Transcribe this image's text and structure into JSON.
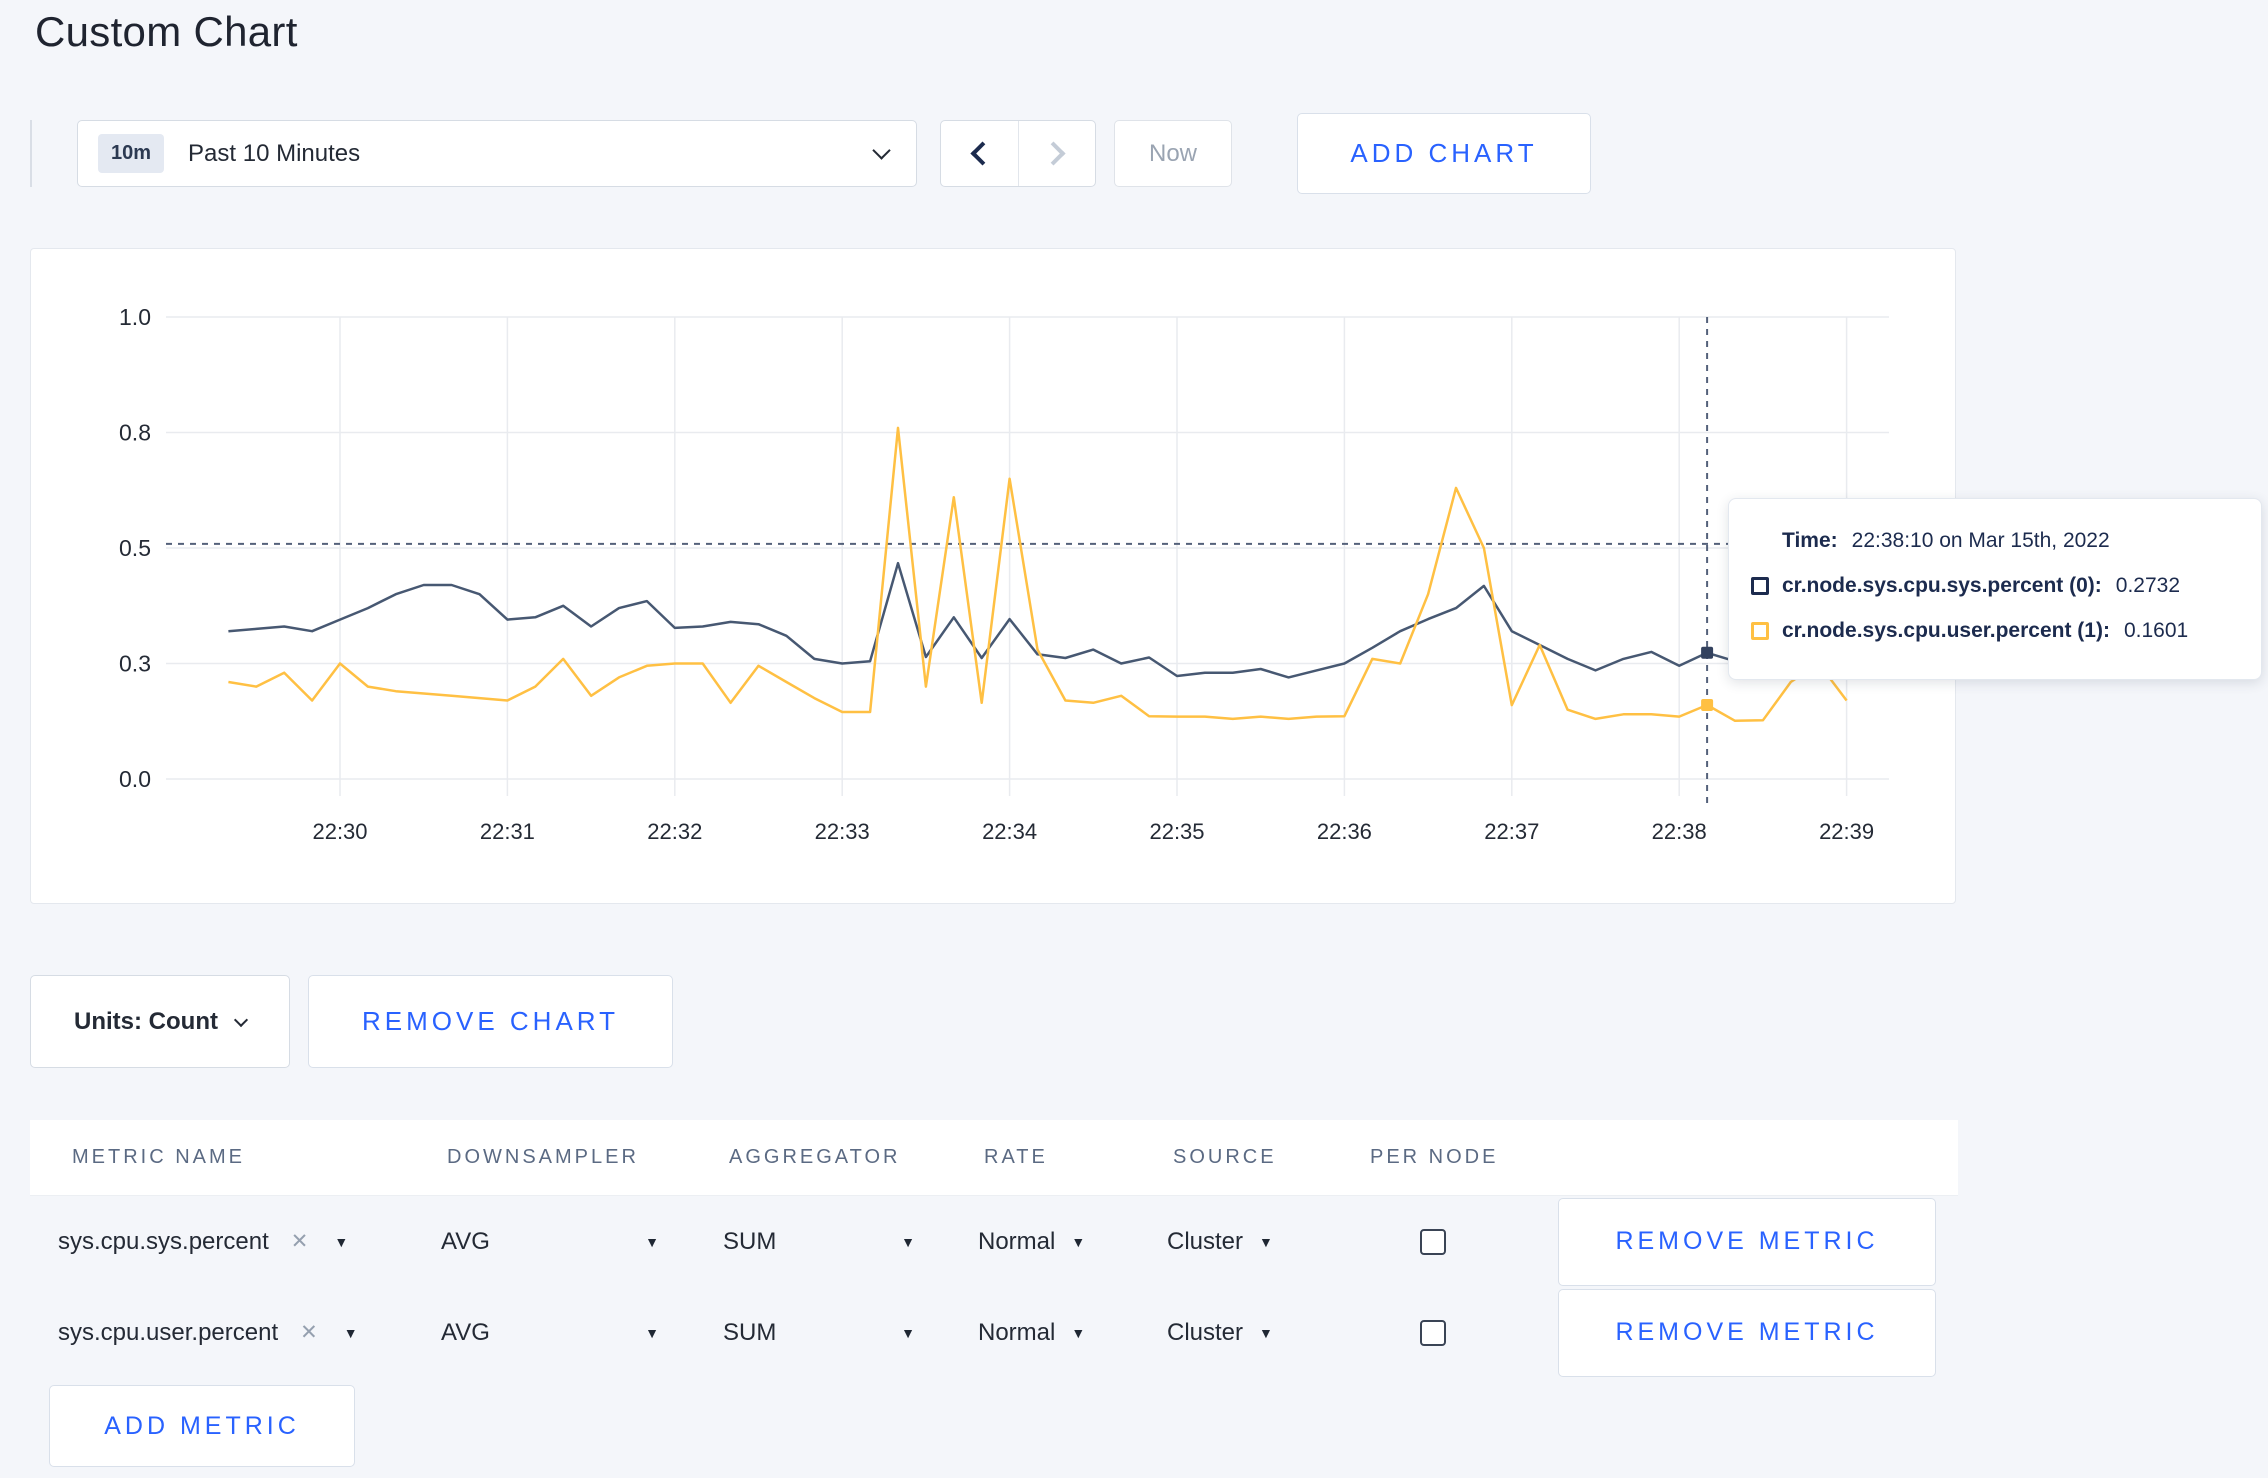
{
  "page": {
    "title": "Custom Chart"
  },
  "toolbar": {
    "range_badge": "10m",
    "range_label": "Past 10 Minutes",
    "now_label": "Now",
    "add_chart_label": "ADD CHART"
  },
  "icons": {
    "close": "✕",
    "dropdown": "▼"
  },
  "colors": {
    "accent_blue": "#2962ff",
    "series_sys": "#475872",
    "series_user": "#ffc043",
    "crosshair": "#54617a",
    "gridline": "#e9ebef",
    "axis_text": "#242a35"
  },
  "chart_data": {
    "type": "line",
    "title": "",
    "xlabel": "",
    "ylabel": "",
    "ylim": [
      0,
      1
    ],
    "grid": true,
    "legend_position": "none",
    "y_ticks": {
      "labels": [
        "1.0",
        "0.8",
        "0.5",
        "0.3",
        "0.0"
      ],
      "values": [
        1.0,
        0.75,
        0.5,
        0.25,
        0.0
      ]
    },
    "x_ticks": [
      "22:30",
      "22:31",
      "22:32",
      "22:33",
      "22:34",
      "22:35",
      "22:36",
      "22:37",
      "22:38",
      "22:39"
    ],
    "x_start_label": "22:29:20",
    "sample_interval_seconds": 10,
    "series": [
      {
        "name": "cr.node.sys.cpu.sys.percent",
        "color": "#475872",
        "values": [
          0.32,
          0.325,
          0.33,
          0.32,
          0.345,
          0.37,
          0.4,
          0.42,
          0.42,
          0.4,
          0.345,
          0.35,
          0.375,
          0.33,
          0.37,
          0.385,
          0.327,
          0.33,
          0.34,
          0.335,
          0.31,
          0.26,
          0.25,
          0.255,
          0.467,
          0.264,
          0.35,
          0.262,
          0.346,
          0.27,
          0.262,
          0.28,
          0.25,
          0.263,
          0.223,
          0.23,
          0.23,
          0.238,
          0.22,
          0.235,
          0.25,
          0.284,
          0.32,
          0.346,
          0.37,
          0.418,
          0.32,
          0.29,
          0.26,
          0.235,
          0.26,
          0.275,
          0.245,
          0.2732,
          0.255,
          0.26,
          0.27,
          0.28,
          0.27
        ]
      },
      {
        "name": "cr.node.sys.cpu.user.percent",
        "color": "#ffc043",
        "values": [
          0.21,
          0.2,
          0.23,
          0.17,
          0.25,
          0.2,
          0.19,
          0.185,
          0.18,
          0.175,
          0.17,
          0.2,
          0.26,
          0.18,
          0.22,
          0.245,
          0.25,
          0.25,
          0.165,
          0.245,
          0.21,
          0.175,
          0.145,
          0.145,
          0.76,
          0.2,
          0.61,
          0.165,
          0.65,
          0.28,
          0.17,
          0.165,
          0.18,
          0.136,
          0.135,
          0.135,
          0.13,
          0.135,
          0.13,
          0.135,
          0.136,
          0.26,
          0.25,
          0.4,
          0.63,
          0.5,
          0.16,
          0.29,
          0.15,
          0.13,
          0.14,
          0.14,
          0.135,
          0.1601,
          0.126,
          0.127,
          0.21,
          0.25,
          0.17
        ]
      }
    ],
    "crosshair": {
      "time_index": 53,
      "time_label": "22:38:10",
      "cursor_value": 0.509,
      "point_values": [
        0.2732,
        0.1601
      ]
    }
  },
  "tooltip": {
    "time_label": "Time:",
    "time_value": "22:38:10 on Mar 15th, 2022",
    "rows": [
      {
        "name": "cr.node.sys.cpu.sys.percent (0):",
        "value": "0.2732",
        "color": "#1c2b4e"
      },
      {
        "name": "cr.node.sys.cpu.user.percent (1):",
        "value": "0.1601",
        "color": "#ffc043"
      }
    ]
  },
  "chart_controls": {
    "units_label": "Units: Count",
    "remove_chart_label": "REMOVE CHART",
    "add_metric_label": "ADD METRIC"
  },
  "metrics_table": {
    "headers": [
      "METRIC NAME",
      "DOWNSAMPLER",
      "AGGREGATOR",
      "RATE",
      "SOURCE",
      "PER NODE"
    ],
    "rows": [
      {
        "metric": "sys.cpu.sys.percent",
        "downsampler": "AVG",
        "aggregator": "SUM",
        "rate": "Normal",
        "source": "Cluster",
        "per_node_checked": false,
        "remove_label": "REMOVE METRIC"
      },
      {
        "metric": "sys.cpu.user.percent",
        "downsampler": "AVG",
        "aggregator": "SUM",
        "rate": "Normal",
        "source": "Cluster",
        "per_node_checked": false,
        "remove_label": "REMOVE METRIC"
      }
    ]
  }
}
